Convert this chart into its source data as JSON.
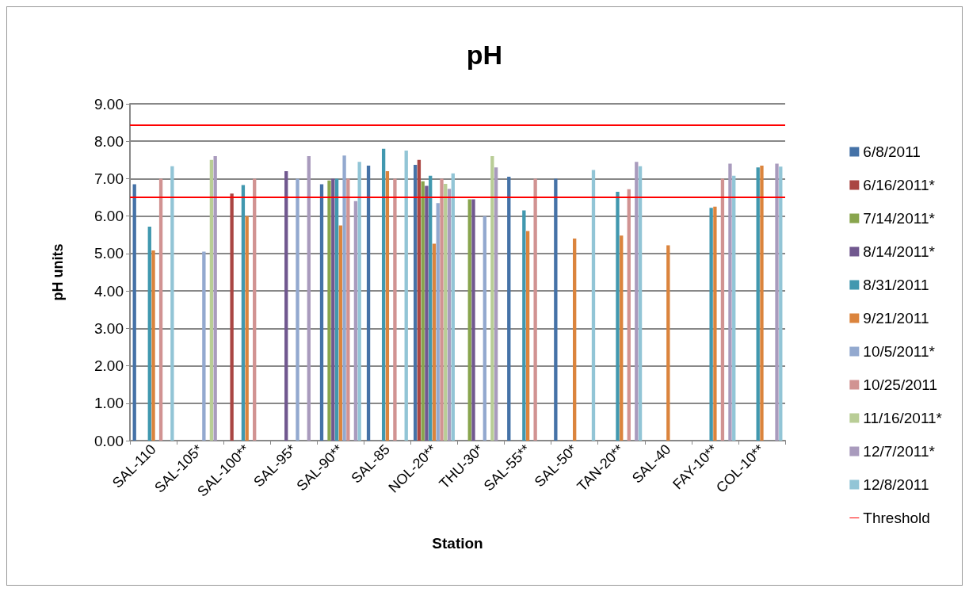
{
  "chart_data": {
    "type": "bar",
    "title": "pH",
    "xlabel": "Station",
    "ylabel": "pH units",
    "categories": [
      "SAL-110",
      "SAL-105*",
      "SAL-100**",
      "SAL-95*",
      "SAL-90**",
      "SAL-85",
      "NOL-20**",
      "THU-30*",
      "SAL-55**",
      "SAL-50*",
      "TAN-20**",
      "SAL-40",
      "FAY-10**",
      "COL-10**"
    ],
    "ylim": [
      0,
      9
    ],
    "yticks": [
      {
        "value": 0,
        "label": "0.00"
      },
      {
        "value": 1,
        "label": "1.00"
      },
      {
        "value": 2,
        "label": "2.00"
      },
      {
        "value": 3,
        "label": "3.00"
      },
      {
        "value": 4,
        "label": "4.00"
      },
      {
        "value": 5,
        "label": "5.00"
      },
      {
        "value": 6,
        "label": "6.00"
      },
      {
        "value": 7,
        "label": "7.00"
      },
      {
        "value": 8,
        "label": "8.00"
      },
      {
        "value": 9,
        "label": "9.00"
      }
    ],
    "grid": "y",
    "legend": "right",
    "ref_lines": [
      {
        "axis": "y",
        "value": 8.43,
        "label": "Threshold",
        "color": "#ff0000"
      },
      {
        "axis": "y",
        "value": 6.5,
        "color": "#ff0000"
      }
    ],
    "series": [
      {
        "name": "6/8/2011",
        "color": "#4572a7",
        "values": [
          6.85,
          null,
          null,
          null,
          6.85,
          7.35,
          7.37,
          null,
          7.05,
          7.0,
          null,
          null,
          null,
          null
        ]
      },
      {
        "name": "6/16/2011*",
        "color": "#aa4643",
        "values": [
          null,
          null,
          6.6,
          null,
          null,
          null,
          7.5,
          null,
          null,
          null,
          null,
          null,
          null,
          null
        ]
      },
      {
        "name": "7/14/2011*",
        "color": "#89a54e",
        "values": [
          null,
          null,
          null,
          null,
          6.95,
          null,
          6.93,
          6.45,
          null,
          null,
          null,
          null,
          null,
          null
        ]
      },
      {
        "name": "8/14/2011*",
        "color": "#71588f",
        "values": [
          null,
          null,
          null,
          7.2,
          7.0,
          null,
          6.81,
          6.45,
          null,
          null,
          null,
          null,
          null,
          null
        ]
      },
      {
        "name": "8/31/2011",
        "color": "#4198af",
        "values": [
          5.72,
          null,
          6.83,
          null,
          7.0,
          7.8,
          7.08,
          null,
          6.15,
          null,
          6.65,
          null,
          6.22,
          7.3
        ]
      },
      {
        "name": "9/21/2011",
        "color": "#db843d",
        "values": [
          5.08,
          null,
          6.0,
          null,
          5.75,
          7.2,
          5.26,
          null,
          5.6,
          5.4,
          5.48,
          5.22,
          6.25,
          7.35
        ]
      },
      {
        "name": "10/5/2011*",
        "color": "#93a9cf",
        "values": [
          null,
          5.05,
          null,
          7.0,
          7.62,
          null,
          6.35,
          6.0,
          null,
          null,
          null,
          null,
          null,
          null
        ]
      },
      {
        "name": "10/25/2011",
        "color": "#d19392",
        "values": [
          7.0,
          null,
          7.0,
          null,
          7.0,
          7.0,
          7.0,
          null,
          7.0,
          null,
          6.72,
          null,
          7.0,
          null
        ]
      },
      {
        "name": "11/16/2011*",
        "color": "#b9cd96",
        "values": [
          null,
          7.5,
          null,
          null,
          null,
          null,
          6.86,
          7.6,
          null,
          null,
          null,
          null,
          null,
          null
        ]
      },
      {
        "name": "12/7/2011*",
        "color": "#a99bbd",
        "values": [
          null,
          7.6,
          null,
          7.6,
          6.4,
          null,
          6.73,
          7.3,
          null,
          null,
          7.45,
          null,
          7.4,
          7.4
        ]
      },
      {
        "name": "12/8/2011",
        "color": "#92c5d6",
        "values": [
          7.33,
          null,
          null,
          null,
          7.45,
          7.75,
          7.14,
          null,
          null,
          7.23,
          7.33,
          null,
          7.08,
          7.32
        ]
      }
    ]
  }
}
